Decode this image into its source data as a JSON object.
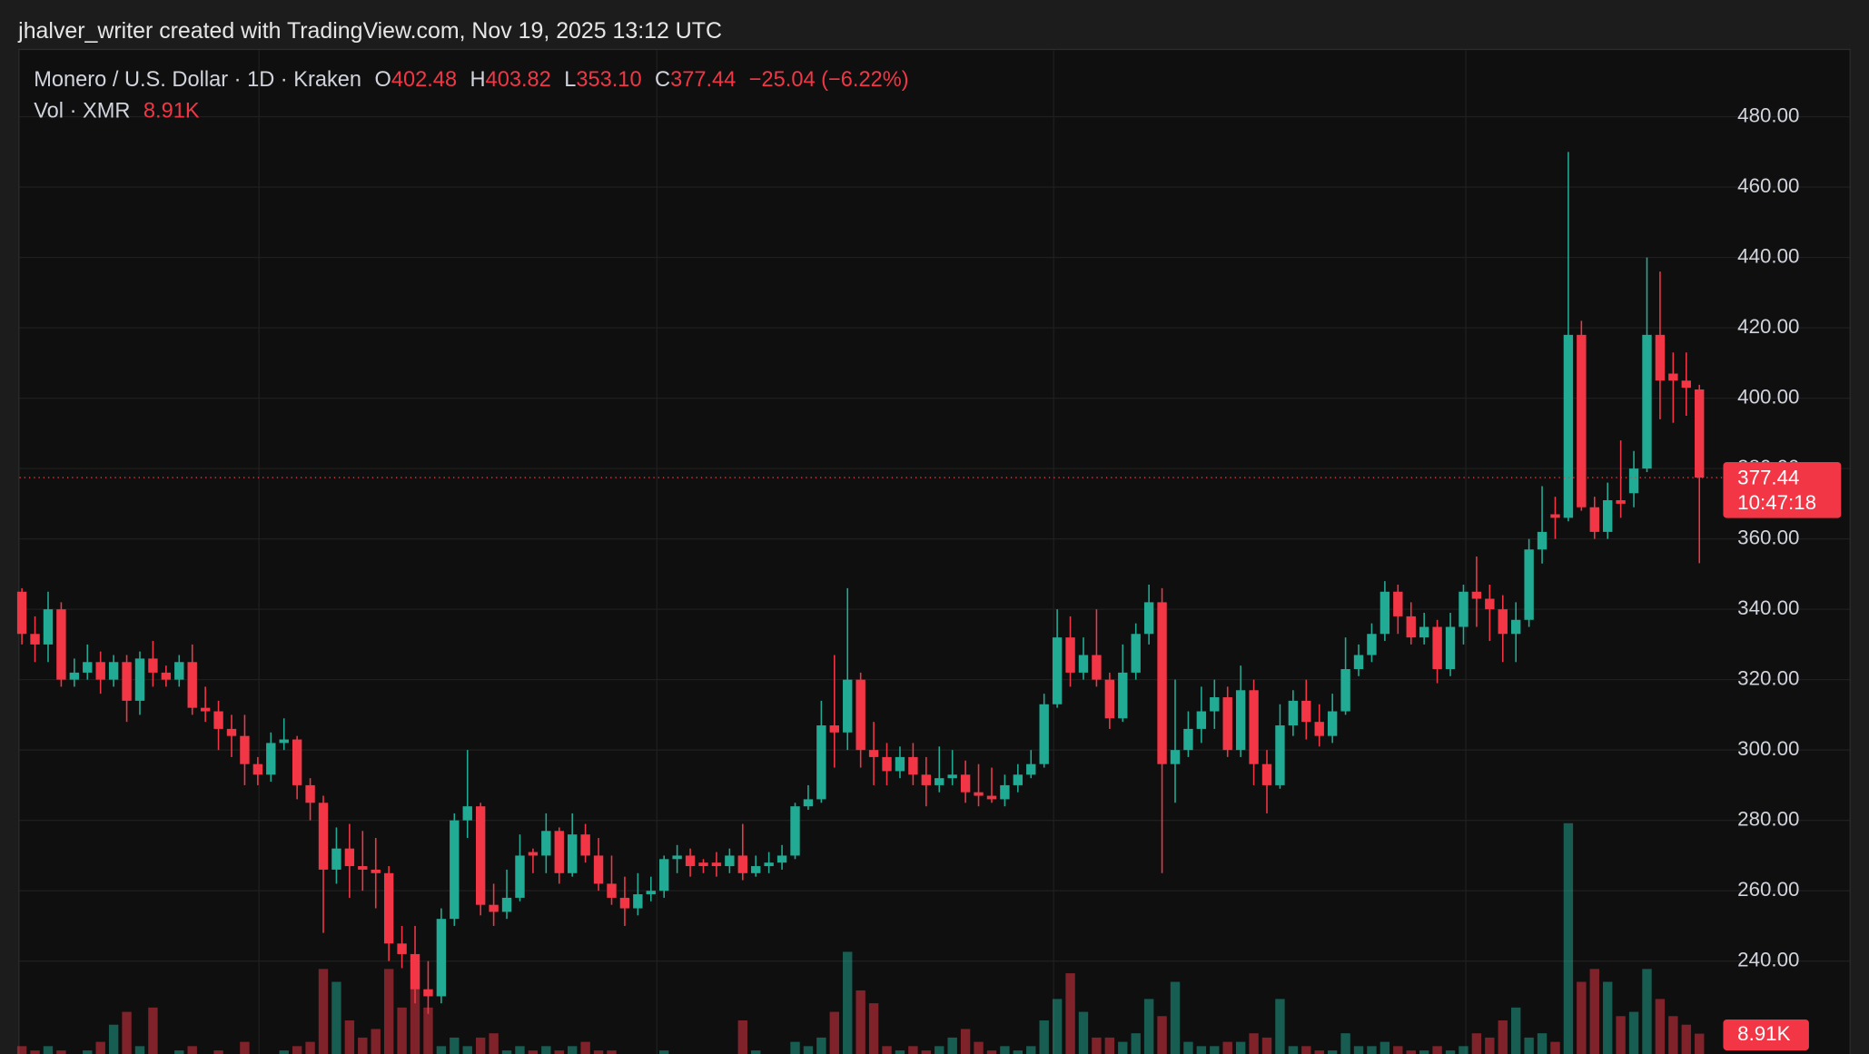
{
  "header": {
    "credit": "jhalver_writer created with TradingView.com, Nov 19, 2025 13:12 UTC",
    "symbol": "Monero / U.S. Dollar · 1D · Kraken",
    "open_key": "O",
    "open": "402.48",
    "high_key": "H",
    "high": "403.82",
    "low_key": "L",
    "low": "353.10",
    "close_key": "C",
    "close": "377.44",
    "change": "−25.04 (−6.22%)",
    "volume_key": "Vol · XMR",
    "volume": "8.91K",
    "countdown": "10:47:18"
  },
  "chart_data": {
    "type": "candlestick",
    "up_color": "#22ab94",
    "down_color": "#f23645",
    "grid": true,
    "ylim": [
      213.6,
      499.3
    ],
    "yticks": [
      {
        "value": 240,
        "label": "240.00"
      },
      {
        "value": 260,
        "label": "260.00"
      },
      {
        "value": 280,
        "label": "280.00"
      },
      {
        "value": 300,
        "label": "300.00"
      },
      {
        "value": 320,
        "label": "320.00"
      },
      {
        "value": 340,
        "label": "340.00"
      },
      {
        "value": 360,
        "label": "360.00"
      },
      {
        "value": 380,
        "label": "380.00"
      },
      {
        "value": 400,
        "label": "400.00"
      },
      {
        "value": 420,
        "label": "420.00"
      },
      {
        "value": 440,
        "label": "440.00"
      },
      {
        "value": 460,
        "label": "460.00"
      },
      {
        "value": 480,
        "label": "480.00"
      }
    ],
    "last_price": {
      "value": 377.44,
      "label": "377.44"
    },
    "candles": [
      {
        "open": 345,
        "high": 346,
        "low": 330,
        "close": 333,
        "volume": 6
      },
      {
        "open": 333,
        "high": 338,
        "low": 325,
        "close": 330,
        "volume": 5
      },
      {
        "open": 330,
        "high": 345,
        "low": 325,
        "close": 340,
        "volume": 6
      },
      {
        "open": 340,
        "high": 342,
        "low": 318,
        "close": 320,
        "volume": 5
      },
      {
        "open": 320,
        "high": 326,
        "low": 318,
        "close": 322,
        "volume": 4
      },
      {
        "open": 322,
        "high": 330,
        "low": 320,
        "close": 325,
        "volume": 5
      },
      {
        "open": 325,
        "high": 328,
        "low": 316,
        "close": 320,
        "volume": 7
      },
      {
        "open": 320,
        "high": 327,
        "low": 318,
        "close": 325,
        "volume": 11
      },
      {
        "open": 325,
        "high": 327,
        "low": 308,
        "close": 314,
        "volume": 14
      },
      {
        "open": 314,
        "high": 328,
        "low": 310,
        "close": 326,
        "volume": 6
      },
      {
        "open": 326,
        "high": 331,
        "low": 318,
        "close": 322,
        "volume": 15
      },
      {
        "open": 322,
        "high": 324,
        "low": 318,
        "close": 320,
        "volume": 4
      },
      {
        "open": 320,
        "high": 327,
        "low": 318,
        "close": 325,
        "volume": 5
      },
      {
        "open": 325,
        "high": 330,
        "low": 310,
        "close": 312,
        "volume": 6
      },
      {
        "open": 312,
        "high": 318,
        "low": 308,
        "close": 311,
        "volume": 4
      },
      {
        "open": 311,
        "high": 314,
        "low": 300,
        "close": 306,
        "volume": 5
      },
      {
        "open": 306,
        "high": 310,
        "low": 298,
        "close": 304,
        "volume": 4
      },
      {
        "open": 304,
        "high": 310,
        "low": 290,
        "close": 296,
        "volume": 7
      },
      {
        "open": 296,
        "high": 298,
        "low": 290,
        "close": 293,
        "volume": 4
      },
      {
        "open": 293,
        "high": 305,
        "low": 291,
        "close": 302,
        "volume": 4
      },
      {
        "open": 302,
        "high": 309,
        "low": 300,
        "close": 303,
        "volume": 5
      },
      {
        "open": 303,
        "high": 304,
        "low": 286,
        "close": 290,
        "volume": 6
      },
      {
        "open": 290,
        "high": 292,
        "low": 280,
        "close": 285,
        "volume": 7
      },
      {
        "open": 285,
        "high": 287,
        "low": 248,
        "close": 266,
        "volume": 24
      },
      {
        "open": 266,
        "high": 278,
        "low": 262,
        "close": 272,
        "volume": 21
      },
      {
        "open": 272,
        "high": 279,
        "low": 258,
        "close": 267,
        "volume": 12
      },
      {
        "open": 267,
        "high": 277,
        "low": 260,
        "close": 266,
        "volume": 8
      },
      {
        "open": 266,
        "high": 275,
        "low": 255,
        "close": 265,
        "volume": 10
      },
      {
        "open": 265,
        "high": 267,
        "low": 240,
        "close": 245,
        "volume": 24
      },
      {
        "open": 245,
        "high": 250,
        "low": 238,
        "close": 242,
        "volume": 15
      },
      {
        "open": 242,
        "high": 250,
        "low": 228,
        "close": 232,
        "volume": 26
      },
      {
        "open": 232,
        "high": 240,
        "low": 225,
        "close": 230,
        "volume": 15
      },
      {
        "open": 230,
        "high": 255,
        "low": 228,
        "close": 252,
        "volume": 6
      },
      {
        "open": 252,
        "high": 282,
        "low": 250,
        "close": 280,
        "volume": 8
      },
      {
        "open": 280,
        "high": 300,
        "low": 275,
        "close": 284,
        "volume": 6
      },
      {
        "open": 284,
        "high": 285,
        "low": 253,
        "close": 256,
        "volume": 8
      },
      {
        "open": 256,
        "high": 262,
        "low": 250,
        "close": 254,
        "volume": 9
      },
      {
        "open": 254,
        "high": 266,
        "low": 252,
        "close": 258,
        "volume": 5
      },
      {
        "open": 258,
        "high": 276,
        "low": 257,
        "close": 270,
        "volume": 6
      },
      {
        "open": 271,
        "high": 272,
        "low": 265,
        "close": 270,
        "volume": 5
      },
      {
        "open": 270,
        "high": 282,
        "low": 265,
        "close": 277,
        "volume": 6
      },
      {
        "open": 277,
        "high": 278,
        "low": 262,
        "close": 265,
        "volume": 5
      },
      {
        "open": 265,
        "high": 282,
        "low": 264,
        "close": 276,
        "volume": 6
      },
      {
        "open": 276,
        "high": 279,
        "low": 268,
        "close": 270,
        "volume": 7
      },
      {
        "open": 270,
        "high": 275,
        "low": 260,
        "close": 262,
        "volume": 5
      },
      {
        "open": 262,
        "high": 270,
        "low": 256,
        "close": 258,
        "volume": 5
      },
      {
        "open": 258,
        "high": 264,
        "low": 250,
        "close": 255,
        "volume": 4
      },
      {
        "open": 255,
        "high": 265,
        "low": 253,
        "close": 259,
        "volume": 4
      },
      {
        "open": 259,
        "high": 264,
        "low": 257,
        "close": 260,
        "volume": 4
      },
      {
        "open": 260,
        "high": 270,
        "low": 258,
        "close": 269,
        "volume": 5
      },
      {
        "open": 269,
        "high": 273,
        "low": 265,
        "close": 270,
        "volume": 4
      },
      {
        "open": 270,
        "high": 272,
        "low": 264,
        "close": 267,
        "volume": 4
      },
      {
        "open": 268,
        "high": 269,
        "low": 265,
        "close": 267,
        "volume": 4
      },
      {
        "open": 268,
        "high": 271,
        "low": 264,
        "close": 267,
        "volume": 4
      },
      {
        "open": 267,
        "high": 272,
        "low": 265,
        "close": 270,
        "volume": 4
      },
      {
        "open": 270,
        "high": 279,
        "low": 263,
        "close": 265,
        "volume": 12
      },
      {
        "open": 265,
        "high": 270,
        "low": 264,
        "close": 267,
        "volume": 5
      },
      {
        "open": 267,
        "high": 271,
        "low": 265,
        "close": 268,
        "volume": 4
      },
      {
        "open": 268,
        "high": 273,
        "low": 266,
        "close": 270,
        "volume": 4
      },
      {
        "open": 270,
        "high": 285,
        "low": 269,
        "close": 284,
        "volume": 7
      },
      {
        "open": 284,
        "high": 290,
        "low": 283,
        "close": 286,
        "volume": 6
      },
      {
        "open": 286,
        "high": 314,
        "low": 285,
        "close": 307,
        "volume": 8
      },
      {
        "open": 307,
        "high": 327,
        "low": 295,
        "close": 305,
        "volume": 14
      },
      {
        "open": 305,
        "high": 346,
        "low": 300,
        "close": 320,
        "volume": 28
      },
      {
        "open": 320,
        "high": 322,
        "low": 295,
        "close": 300,
        "volume": 19
      },
      {
        "open": 300,
        "high": 308,
        "low": 290,
        "close": 298,
        "volume": 16
      },
      {
        "open": 298,
        "high": 302,
        "low": 290,
        "close": 294,
        "volume": 6
      },
      {
        "open": 294,
        "high": 301,
        "low": 292,
        "close": 298,
        "volume": 5
      },
      {
        "open": 298,
        "high": 302,
        "low": 290,
        "close": 293,
        "volume": 6
      },
      {
        "open": 293,
        "high": 298,
        "low": 284,
        "close": 290,
        "volume": 5
      },
      {
        "open": 290,
        "high": 301,
        "low": 288,
        "close": 292,
        "volume": 6
      },
      {
        "open": 292,
        "high": 300,
        "low": 290,
        "close": 293,
        "volume": 8
      },
      {
        "open": 293,
        "high": 297,
        "low": 285,
        "close": 288,
        "volume": 10
      },
      {
        "open": 288,
        "high": 296,
        "low": 284,
        "close": 287,
        "volume": 7
      },
      {
        "open": 287,
        "high": 295,
        "low": 285,
        "close": 286,
        "volume": 5
      },
      {
        "open": 286,
        "high": 293,
        "low": 284,
        "close": 290,
        "volume": 6
      },
      {
        "open": 290,
        "high": 296,
        "low": 288,
        "close": 293,
        "volume": 5
      },
      {
        "open": 293,
        "high": 300,
        "low": 292,
        "close": 296,
        "volume": 6
      },
      {
        "open": 296,
        "high": 316,
        "low": 295,
        "close": 313,
        "volume": 12
      },
      {
        "open": 313,
        "high": 340,
        "low": 312,
        "close": 332,
        "volume": 17
      },
      {
        "open": 332,
        "high": 338,
        "low": 318,
        "close": 322,
        "volume": 23
      },
      {
        "open": 322,
        "high": 332,
        "low": 320,
        "close": 327,
        "volume": 14
      },
      {
        "open": 327,
        "high": 340,
        "low": 318,
        "close": 320,
        "volume": 8
      },
      {
        "open": 320,
        "high": 322,
        "low": 306,
        "close": 309,
        "volume": 8
      },
      {
        "open": 309,
        "high": 330,
        "low": 308,
        "close": 322,
        "volume": 7
      },
      {
        "open": 322,
        "high": 336,
        "low": 320,
        "close": 333,
        "volume": 9
      },
      {
        "open": 333,
        "high": 347,
        "low": 330,
        "close": 342,
        "volume": 17
      },
      {
        "open": 342,
        "high": 346,
        "low": 265,
        "close": 296,
        "volume": 13
      },
      {
        "open": 296,
        "high": 320,
        "low": 285,
        "close": 300,
        "volume": 21
      },
      {
        "open": 300,
        "high": 311,
        "low": 298,
        "close": 306,
        "volume": 7
      },
      {
        "open": 306,
        "high": 318,
        "low": 302,
        "close": 311,
        "volume": 6
      },
      {
        "open": 311,
        "high": 320,
        "low": 306,
        "close": 315,
        "volume": 6
      },
      {
        "open": 315,
        "high": 318,
        "low": 298,
        "close": 300,
        "volume": 7
      },
      {
        "open": 300,
        "high": 324,
        "low": 298,
        "close": 317,
        "volume": 7
      },
      {
        "open": 317,
        "high": 320,
        "low": 290,
        "close": 296,
        "volume": 9
      },
      {
        "open": 296,
        "high": 300,
        "low": 282,
        "close": 290,
        "volume": 8
      },
      {
        "open": 290,
        "high": 313,
        "low": 289,
        "close": 307,
        "volume": 17
      },
      {
        "open": 307,
        "high": 317,
        "low": 304,
        "close": 314,
        "volume": 6
      },
      {
        "open": 314,
        "high": 320,
        "low": 303,
        "close": 308,
        "volume": 6
      },
      {
        "open": 308,
        "high": 313,
        "low": 301,
        "close": 304,
        "volume": 5
      },
      {
        "open": 304,
        "high": 316,
        "low": 302,
        "close": 311,
        "volume": 5
      },
      {
        "open": 311,
        "high": 332,
        "low": 310,
        "close": 323,
        "volume": 9
      },
      {
        "open": 323,
        "high": 330,
        "low": 321,
        "close": 327,
        "volume": 6
      },
      {
        "open": 327,
        "high": 336,
        "low": 325,
        "close": 333,
        "volume": 6
      },
      {
        "open": 333,
        "high": 348,
        "low": 331,
        "close": 345,
        "volume": 7
      },
      {
        "open": 345,
        "high": 347,
        "low": 333,
        "close": 338,
        "volume": 6
      },
      {
        "open": 338,
        "high": 342,
        "low": 330,
        "close": 332,
        "volume": 5
      },
      {
        "open": 332,
        "high": 339,
        "low": 330,
        "close": 335,
        "volume": 5
      },
      {
        "open": 335,
        "high": 337,
        "low": 319,
        "close": 323,
        "volume": 6
      },
      {
        "open": 323,
        "high": 339,
        "low": 321,
        "close": 335,
        "volume": 5
      },
      {
        "open": 335,
        "high": 347,
        "low": 330,
        "close": 345,
        "volume": 6
      },
      {
        "open": 345,
        "high": 355,
        "low": 335,
        "close": 343,
        "volume": 9
      },
      {
        "open": 343,
        "high": 347,
        "low": 331,
        "close": 340,
        "volume": 8
      },
      {
        "open": 340,
        "high": 344,
        "low": 325,
        "close": 333,
        "volume": 12
      },
      {
        "open": 333,
        "high": 342,
        "low": 325,
        "close": 337,
        "volume": 15
      },
      {
        "open": 337,
        "high": 360,
        "low": 335,
        "close": 357,
        "volume": 8
      },
      {
        "open": 357,
        "high": 375,
        "low": 353,
        "close": 362,
        "volume": 9
      },
      {
        "open": 367,
        "high": 372,
        "low": 360,
        "close": 366,
        "volume": 7
      },
      {
        "open": 366,
        "high": 470,
        "low": 365,
        "close": 418,
        "volume": 58
      },
      {
        "open": 418,
        "high": 422,
        "low": 368,
        "close": 369,
        "volume": 21
      },
      {
        "open": 369,
        "high": 372,
        "low": 360,
        "close": 362,
        "volume": 24
      },
      {
        "open": 362,
        "high": 376,
        "low": 360,
        "close": 371,
        "volume": 21
      },
      {
        "open": 371,
        "high": 388,
        "low": 366,
        "close": 370,
        "volume": 13
      },
      {
        "open": 373,
        "high": 385,
        "low": 369,
        "close": 380,
        "volume": 14
      },
      {
        "open": 380,
        "high": 440,
        "low": 379,
        "close": 418,
        "volume": 24
      },
      {
        "open": 418,
        "high": 436,
        "low": 394,
        "close": 405,
        "volume": 17
      },
      {
        "open": 407,
        "high": 413,
        "low": 393,
        "close": 405,
        "volume": 13
      },
      {
        "open": 405,
        "high": 413,
        "low": 395,
        "close": 403,
        "volume": 11
      },
      {
        "open": 402.48,
        "high": 403.82,
        "low": 353.1,
        "close": 377.44,
        "volume": 8.91
      }
    ]
  }
}
